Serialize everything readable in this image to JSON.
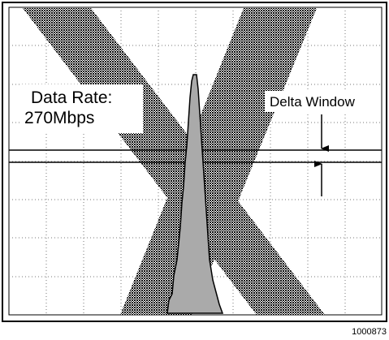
{
  "labels": {
    "data_rate": "Data Rate:",
    "data_rate_value": "270Mbps",
    "delta_window": "Delta Window"
  },
  "figure_id": "1000873"
}
